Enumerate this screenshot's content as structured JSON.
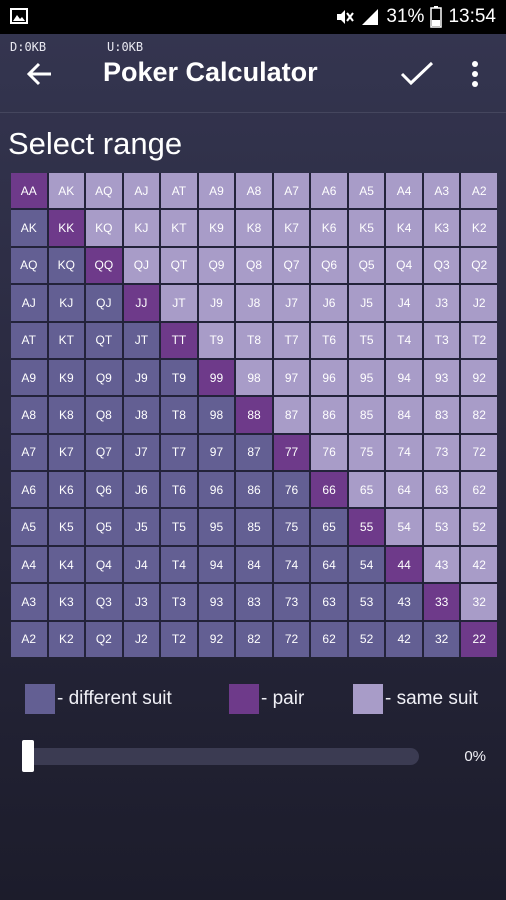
{
  "status_bar": {
    "battery": "31%",
    "time": "13:54",
    "icons": [
      "gallery-icon",
      "mute-icon",
      "signal-icon",
      "battery-icon"
    ]
  },
  "net": {
    "down": "D:0KB",
    "up": "U:0KB"
  },
  "app_bar": {
    "title": "Poker Calculator",
    "icons": [
      "back-arrow-icon",
      "check-icon",
      "overflow-menu-icon"
    ]
  },
  "section_title": "Select range",
  "grid": {
    "ranks": [
      "A",
      "K",
      "Q",
      "J",
      "T",
      "9",
      "8",
      "7",
      "6",
      "5",
      "4",
      "3",
      "2"
    ],
    "colors": {
      "pair": "#6e3a8a",
      "suited": "#a89cc8",
      "offsuit": "#635f93"
    }
  },
  "legend": {
    "different_suit": "- different suit",
    "pair": "- pair",
    "same_suit": "- same suit"
  },
  "range_slider": {
    "value_percent": 0,
    "label": "0%"
  }
}
